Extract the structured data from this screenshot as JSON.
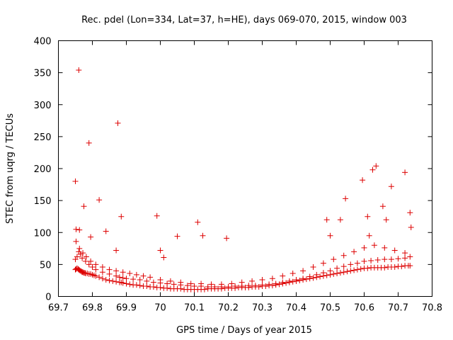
{
  "chart_data": {
    "type": "scatter",
    "title": "Rec. pdel (Lon=334, Lat=37, h=HE), days 069-070, 2015, window 003",
    "xlabel": "GPS time / Days of year 2015",
    "ylabel": "STEC from uqrg / TECUs",
    "xlim": [
      69.7,
      70.8
    ],
    "ylim": [
      0,
      400
    ],
    "xticks": [
      "69.7",
      "69.8",
      "69.9",
      "70",
      "70.1",
      "70.2",
      "70.3",
      "70.4",
      "70.5",
      "70.6",
      "70.7",
      "70.8"
    ],
    "yticks": [
      "0",
      "50",
      "100",
      "150",
      "200",
      "250",
      "300",
      "350",
      "400"
    ],
    "grid": false,
    "legend": "none",
    "marker": "plus",
    "color": "#dd0000",
    "series": [
      {
        "x": [
          69.75,
          69.752,
          69.755,
          69.758,
          69.76,
          69.762,
          69.765,
          69.768,
          69.77,
          69.772,
          69.775,
          69.778,
          69.78,
          69.785,
          69.79,
          69.795,
          69.8,
          69.805,
          69.81,
          69.82,
          69.83,
          69.84,
          69.85,
          69.86,
          69.87,
          69.88,
          69.885,
          69.89,
          69.9,
          69.91,
          69.92,
          69.93,
          69.94,
          69.95,
          69.96,
          69.97,
          69.98,
          69.99,
          70.0,
          70.01,
          70.02,
          70.03,
          70.04,
          70.05,
          70.06,
          70.07,
          70.08,
          70.09,
          70.1,
          70.11,
          70.12,
          70.13,
          70.14,
          70.15,
          70.16,
          70.17,
          70.18,
          70.19,
          70.2,
          70.21,
          70.22,
          70.23,
          70.24,
          70.25,
          70.26,
          70.27,
          70.28,
          70.29,
          70.3,
          70.31,
          70.32,
          70.33,
          70.34,
          70.35,
          70.36,
          70.37,
          70.38,
          70.39,
          70.4,
          70.41,
          70.42,
          70.43,
          70.44,
          70.45,
          70.46,
          70.47,
          70.48,
          70.49,
          70.5,
          70.51,
          70.52,
          70.53,
          70.54,
          70.55,
          70.56,
          70.57,
          70.58,
          70.59,
          70.6,
          70.61,
          70.62,
          70.63,
          70.64,
          70.65,
          70.66,
          70.67,
          70.68,
          70.69,
          70.7,
          70.71,
          70.72,
          70.73,
          70.735
        ],
        "y": [
          42,
          43,
          44,
          43,
          42,
          41,
          40,
          39,
          38,
          38,
          37,
          37,
          36,
          36,
          35,
          35,
          34,
          33,
          32,
          30,
          28,
          26,
          25,
          24,
          23,
          22,
          22,
          21,
          20,
          19,
          18,
          18,
          17,
          16,
          16,
          15,
          15,
          14,
          14,
          13,
          13,
          12,
          12,
          12,
          12,
          11,
          11,
          11,
          11,
          11,
          11,
          11,
          12,
          12,
          12,
          12,
          12,
          13,
          13,
          13,
          13,
          14,
          14,
          14,
          14,
          15,
          15,
          15,
          16,
          16,
          17,
          17,
          18,
          19,
          20,
          21,
          22,
          23,
          24,
          25,
          26,
          27,
          28,
          29,
          30,
          31,
          32,
          33,
          34,
          35,
          36,
          37,
          38,
          39,
          40,
          41,
          42,
          43,
          44,
          44,
          45,
          45,
          45,
          45,
          45,
          46,
          46,
          46,
          47,
          47,
          48,
          48,
          48
        ]
      },
      {
        "x": [
          69.75,
          69.755,
          69.76,
          69.765,
          69.77,
          69.78,
          69.79,
          69.8,
          69.81,
          69.83,
          69.85,
          69.87,
          69.88,
          69.89,
          69.9,
          69.92,
          69.94,
          69.96,
          69.98,
          70.0,
          70.02,
          70.04,
          70.06,
          70.08,
          70.1,
          70.12,
          70.14,
          70.16,
          70.18,
          70.2,
          70.22,
          70.24,
          70.26,
          70.28,
          70.3,
          70.32,
          70.34,
          70.36,
          70.38,
          70.4,
          70.42,
          70.44,
          70.46,
          70.48,
          70.5,
          70.52,
          70.54,
          70.56,
          70.58,
          70.6,
          70.62,
          70.64,
          70.66,
          70.68,
          70.7,
          70.72,
          70.735
        ],
        "y": [
          58,
          62,
          70,
          66,
          60,
          55,
          50,
          46,
          42,
          38,
          35,
          32,
          30,
          29,
          28,
          27,
          26,
          24,
          22,
          21,
          20,
          19,
          18,
          17,
          16,
          16,
          15,
          15,
          15,
          15,
          16,
          16,
          17,
          17,
          18,
          19,
          20,
          22,
          24,
          26,
          28,
          31,
          34,
          37,
          40,
          44,
          47,
          50,
          52,
          55,
          56,
          57,
          58,
          58,
          59,
          60,
          62
        ]
      },
      {
        "x": [
          69.752,
          69.762,
          69.772,
          69.782,
          69.795,
          69.81,
          69.83,
          69.85,
          69.87,
          69.89,
          69.91,
          69.93,
          69.95,
          69.97,
          70.0,
          70.03,
          70.06,
          70.09,
          70.12,
          70.15,
          70.18,
          70.21,
          70.24,
          70.27,
          70.3,
          70.33,
          70.36,
          70.39,
          70.42,
          70.45,
          70.48,
          70.51,
          70.54,
          70.57,
          70.6,
          70.63,
          70.66,
          70.69,
          70.72
        ],
        "y": [
          86,
          75,
          68,
          62,
          55,
          50,
          46,
          42,
          40,
          38,
          36,
          34,
          32,
          30,
          26,
          24,
          22,
          20,
          20,
          19,
          19,
          20,
          22,
          24,
          26,
          28,
          32,
          36,
          40,
          46,
          52,
          58,
          64,
          70,
          76,
          80,
          76,
          72,
          68
        ]
      },
      {
        "x": [
          69.75,
          69.752,
          69.76,
          69.762,
          69.775,
          69.79,
          69.795,
          69.82,
          69.84,
          69.87,
          69.875,
          69.885,
          69.99,
          70.0,
          70.01,
          70.05,
          70.11,
          70.125,
          70.195,
          70.49,
          70.5,
          70.53,
          70.545,
          70.595,
          70.61,
          70.615,
          70.625,
          70.635,
          70.655,
          70.665,
          70.68,
          70.72,
          70.735,
          70.738
        ],
        "y": [
          180,
          105,
          354,
          104,
          141,
          240,
          93,
          151,
          102,
          72,
          271,
          125,
          126,
          72,
          61,
          94,
          116,
          95,
          91,
          120,
          95,
          120,
          153,
          182,
          125,
          95,
          198,
          204,
          141,
          120,
          172,
          194,
          131,
          108
        ]
      }
    ]
  }
}
